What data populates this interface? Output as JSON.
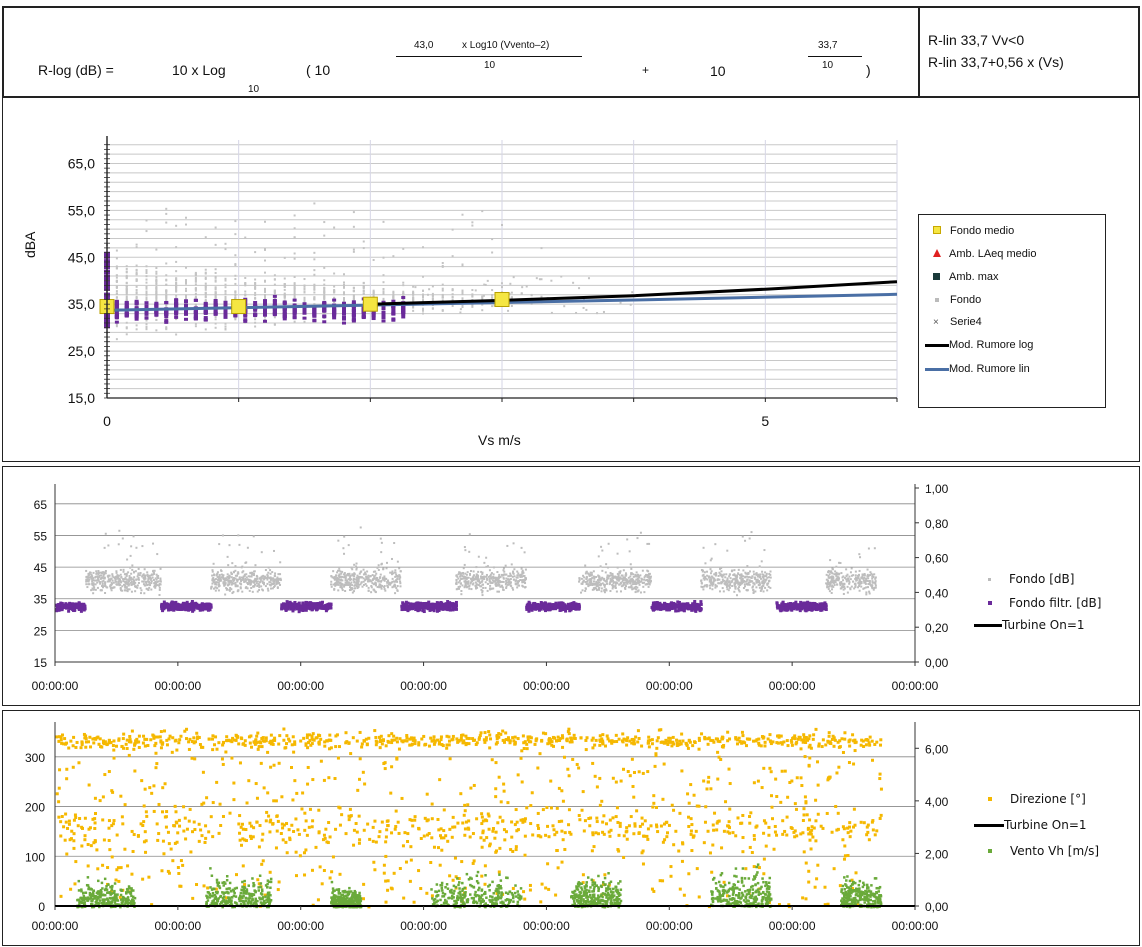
{
  "formula": {
    "lhs": "R-log (dB) =",
    "ten_log": "10 x Log",
    "log_base": "10",
    "paren_open": "( 10",
    "exp1_num_coef": "43,0",
    "exp1_num_rest": "x Log10 (Vvento–2)",
    "exp1_den": "10",
    "plus": "+",
    "ten2": "10",
    "exp2_num": "33,7",
    "exp2_den": "10",
    "paren_close": ")",
    "rlin_1": "R-lin 33,7    Vv<0",
    "rlin_2": "R-lin 33,7+0,56 x  (Vs)"
  },
  "chart_data": [
    {
      "type": "scatter",
      "title": "",
      "xlabel": "Vs m/s",
      "ylabel": "dBA",
      "xlim": [
        0,
        6
      ],
      "ylim": [
        15,
        70
      ],
      "x_ticks": [
        "0",
        "5"
      ],
      "y_ticks": [
        "15,0",
        "25,0",
        "35,0",
        "45,0",
        "55,0",
        "65,0"
      ],
      "grid": true,
      "legend_position": "right",
      "series": [
        {
          "name": "Fondo medio",
          "color": "#f5e642",
          "marker": "square",
          "points": [
            [
              0,
              34.5
            ],
            [
              1,
              34.5
            ],
            [
              2,
              35
            ],
            [
              3,
              36
            ]
          ]
        },
        {
          "name": "Amb. LAeq medio",
          "color": "#e02020",
          "marker": "triangle",
          "points": []
        },
        {
          "name": "Amb. max",
          "color": "#1a3a3a",
          "marker": "square",
          "points": []
        },
        {
          "name": "Fondo",
          "color": "#bbbbbb",
          "marker": "dot",
          "points": []
        },
        {
          "name": "Serie4",
          "color": "#6a2a9a",
          "marker": "x",
          "points": []
        },
        {
          "name": "Mod. Rumore log",
          "color": "#000000",
          "line": true,
          "points": [
            [
              2,
              35
            ],
            [
              3,
              35.8
            ],
            [
              4,
              36.8
            ],
            [
              5,
              38.2
            ],
            [
              6,
              39.8
            ]
          ]
        },
        {
          "name": "Mod. Rumore lin",
          "color": "#4a6fa5",
          "line": true,
          "points": [
            [
              0,
              33.7
            ],
            [
              2,
              34.8
            ],
            [
              4,
              35.9
            ],
            [
              6,
              37.1
            ]
          ]
        }
      ]
    },
    {
      "type": "scatter",
      "title": "",
      "xlabel": "",
      "ylabel": "",
      "ylim": [
        15,
        70
      ],
      "y2lim": [
        0,
        1
      ],
      "x_ticks": [
        "00:00:00",
        "00:00:00",
        "00:00:00",
        "00:00:00",
        "00:00:00",
        "00:00:00",
        "00:00:00",
        "00:00:00"
      ],
      "y_ticks": [
        "15",
        "25",
        "35",
        "45",
        "55",
        "65"
      ],
      "y2_ticks": [
        "0,00",
        "0,20",
        "0,40",
        "0,60",
        "0,80",
        "1,00"
      ],
      "grid": true,
      "legend_position": "right",
      "series": [
        {
          "name": "Fondo [dB]",
          "color": "#bbbbbb"
        },
        {
          "name": "Fondo filtr. [dB]",
          "color": "#6a2a9a"
        },
        {
          "name": "Turbine On=1",
          "color": "#000000"
        }
      ]
    },
    {
      "type": "scatter",
      "title": "",
      "xlabel": "",
      "ylabel": "",
      "ylim": [
        0,
        370
      ],
      "y2lim": [
        0,
        7
      ],
      "x_ticks": [
        "00:00:00",
        "00:00:00",
        "00:00:00",
        "00:00:00",
        "00:00:00",
        "00:00:00",
        "00:00:00",
        "00:00:00"
      ],
      "y_ticks": [
        "0",
        "100",
        "200",
        "300"
      ],
      "y2_ticks": [
        "0,00",
        "2,00",
        "4,00",
        "6,00"
      ],
      "grid": true,
      "legend_position": "right",
      "series": [
        {
          "name": "Direzione [°]",
          "color": "#f5b800"
        },
        {
          "name": "Turbine On=1",
          "color": "#000000"
        },
        {
          "name": "Vento Vh [m/s]",
          "color": "#6aaa3a"
        }
      ]
    }
  ]
}
